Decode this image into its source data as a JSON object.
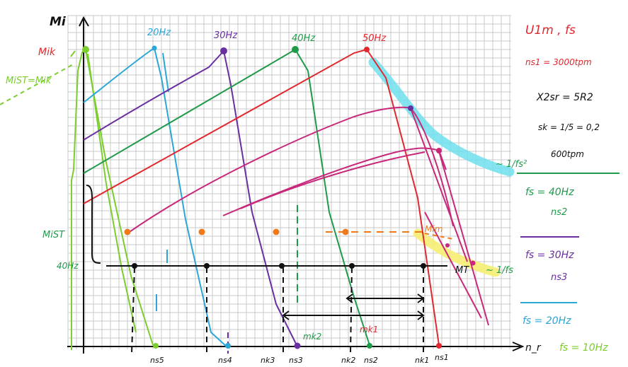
{
  "axes": {
    "y_label": "Mi",
    "x_label": "n_r"
  },
  "colors": {
    "f10": "#7ccd2e",
    "f20": "#2aa7d6",
    "f30": "#6a2fa0",
    "f40": "#1f9a4a",
    "f50": "#e0282e",
    "derived": "#c8287a",
    "orange": "#f07a1a",
    "cyan_highlight": "#6fe0ee",
    "yellow_highlight": "#f6ee72",
    "black": "#111111"
  },
  "curves": {
    "f20_label": "20Hz",
    "f30_label": "30Hz",
    "f40_label": "40Hz",
    "f50_label": "50Hz"
  },
  "left_labels": {
    "mik": "Mik",
    "mist_eq": "MiST=Mik",
    "mist": "MiST",
    "hz40": "40Hz"
  },
  "bottom_labels": {
    "ns5": "ns5",
    "ns4": "ns4",
    "nk3": "nk3",
    "ns3": "ns3",
    "nk2": "nk2",
    "ns2": "ns2",
    "nk1": "nk1",
    "ns1": "ns1"
  },
  "mid_labels": {
    "mk2": "mk2",
    "mk1": "mk1",
    "mim": "Mim",
    "mt": "MT",
    "inv_fs2": "~ 1/fs²",
    "inv_fs": "~ 1/fs"
  },
  "notes": {
    "u_fs": "U1m , fs",
    "ns1_value": "ns1 = 3000tpm",
    "x2sr": "X2sr = 5R2",
    "sk": "sk = 1/5 = 0,2",
    "tpm600": "600tpm"
  },
  "legend": {
    "fs40": "fs = 40Hz",
    "ns2": "ns2",
    "fs30": "fs = 30Hz",
    "ns3": "ns3",
    "fs20": "fs = 20Hz",
    "fs10": "fs = 10Hz"
  }
}
